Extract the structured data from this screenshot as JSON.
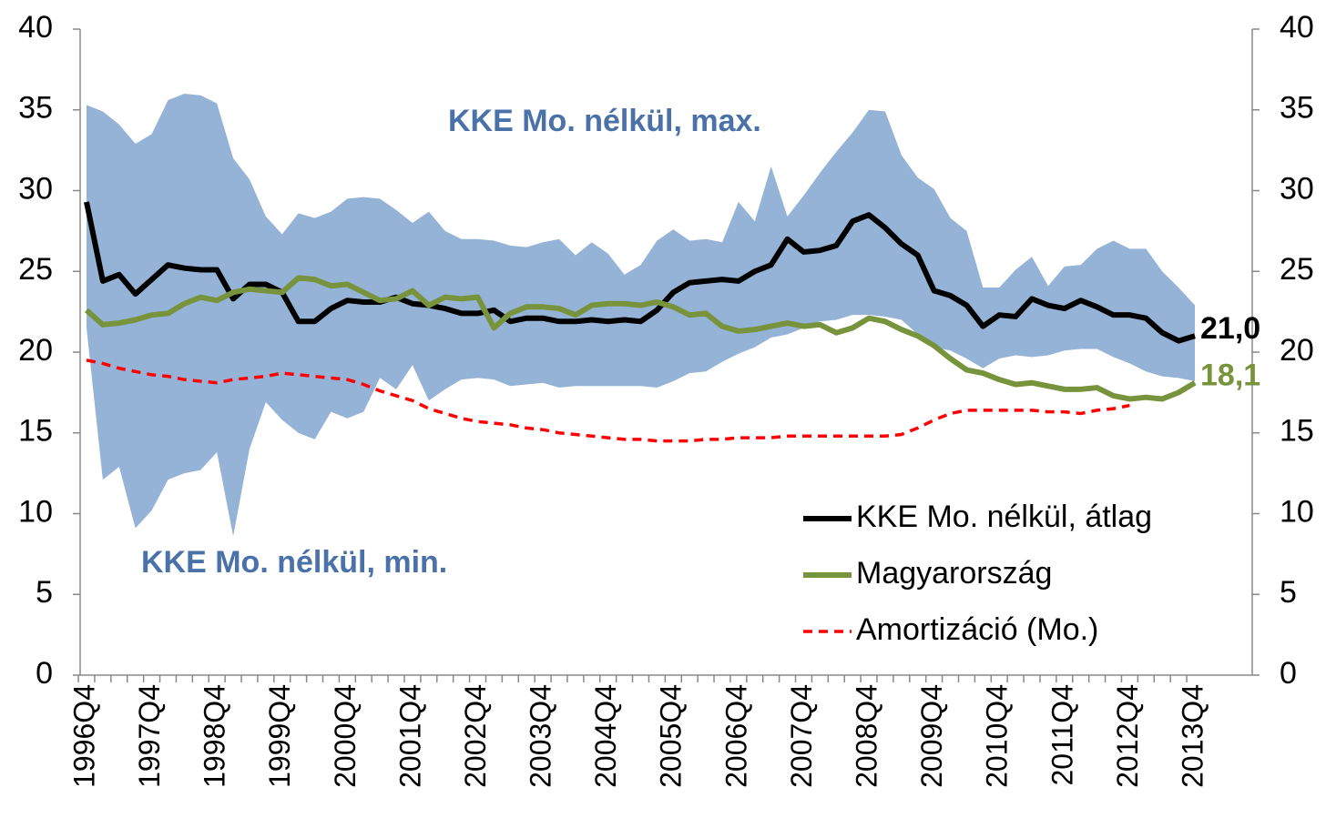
{
  "chart_data": {
    "type": "line",
    "categories": [
      "1996Q4",
      null,
      null,
      null,
      "1997Q4",
      null,
      null,
      null,
      "1998Q4",
      null,
      null,
      null,
      "1999Q4",
      null,
      null,
      null,
      "2000Q4",
      null,
      null,
      null,
      "2001Q4",
      null,
      null,
      null,
      "2002Q4",
      null,
      null,
      null,
      "2003Q4",
      null,
      null,
      null,
      "2004Q4",
      null,
      null,
      null,
      "2005Q4",
      null,
      null,
      null,
      "2006Q4",
      null,
      null,
      null,
      "2007Q4",
      null,
      null,
      null,
      "2008Q4",
      null,
      null,
      null,
      "2009Q4",
      null,
      null,
      null,
      "2010Q4",
      null,
      null,
      null,
      "2011Q4",
      null,
      null,
      null,
      "2012Q4",
      null,
      null,
      null,
      "2013Q4"
    ],
    "band": {
      "color": "#95b3d7",
      "upper": {
        "name": "KKE Mo. nélkül, max.",
        "values": [
          35.3,
          34.9,
          34.1,
          32.9,
          33.5,
          35.6,
          36.0,
          35.9,
          35.4,
          32.0,
          30.7,
          28.4,
          27.3,
          28.6,
          28.3,
          28.7,
          29.5,
          29.6,
          29.5,
          28.8,
          28.0,
          28.7,
          27.5,
          27.0,
          27.0,
          26.9,
          26.6,
          26.5,
          26.8,
          27.0,
          26.0,
          26.8,
          26.1,
          24.8,
          25.4,
          26.9,
          27.6,
          26.9,
          27.0,
          26.8,
          29.3,
          28.1,
          31.5,
          28.4,
          29.7,
          31.1,
          32.4,
          33.6,
          35.0,
          34.9,
          32.2,
          30.8,
          30.1,
          28.3,
          27.5,
          24.0,
          24.0,
          25.1,
          25.9,
          24.1,
          25.3,
          25.4,
          26.4,
          26.9,
          26.4,
          26.4,
          25.0,
          24.0,
          22.9
        ]
      },
      "lower": {
        "name": "KKE Mo. nélkül, min.",
        "values": [
          21.5,
          12.1,
          12.9,
          9.1,
          10.2,
          12.1,
          12.5,
          12.7,
          13.8,
          8.6,
          14.0,
          16.9,
          15.8,
          15.0,
          14.6,
          16.3,
          15.9,
          16.3,
          18.4,
          17.7,
          19.2,
          17.0,
          17.7,
          18.3,
          18.4,
          18.3,
          17.9,
          18.0,
          18.1,
          17.8,
          17.9,
          17.9,
          17.9,
          17.9,
          17.9,
          17.8,
          18.2,
          18.7,
          18.8,
          19.4,
          19.9,
          20.3,
          20.9,
          21.1,
          21.5,
          21.9,
          22.0,
          22.3,
          22.3,
          22.2,
          22.0,
          21.1,
          20.3,
          20.1,
          19.6,
          19.0,
          19.6,
          19.8,
          19.7,
          19.8,
          20.1,
          20.2,
          20.2,
          19.7,
          19.3,
          18.8,
          18.5,
          18.4,
          18.2
        ]
      }
    },
    "series": [
      {
        "name": "KKE Mo. nélkül, átlag",
        "color": "#000000",
        "dashed": false,
        "values": [
          29.3,
          24.4,
          24.8,
          23.6,
          24.5,
          25.4,
          25.2,
          25.1,
          25.1,
          23.3,
          24.2,
          24.2,
          23.7,
          21.9,
          21.9,
          22.7,
          23.2,
          23.1,
          23.1,
          23.4,
          23.0,
          22.9,
          22.7,
          22.4,
          22.4,
          22.6,
          21.9,
          22.1,
          22.1,
          21.9,
          21.9,
          22.0,
          21.9,
          22.0,
          21.9,
          22.6,
          23.7,
          24.3,
          24.4,
          24.5,
          24.4,
          25.0,
          25.4,
          27.0,
          26.2,
          26.3,
          26.6,
          28.1,
          28.5,
          27.7,
          26.7,
          26.0,
          23.8,
          23.5,
          22.9,
          21.6,
          22.3,
          22.2,
          23.3,
          22.9,
          22.7,
          23.2,
          22.8,
          22.3,
          22.3,
          22.1,
          21.2,
          20.7,
          21.0
        ],
        "value_labels": [
          null,
          null,
          null,
          null,
          null,
          null,
          null,
          null,
          null,
          null,
          null,
          null,
          null,
          null,
          null,
          null,
          null,
          null,
          null,
          null,
          null,
          null,
          null,
          null,
          null,
          null,
          null,
          null,
          null,
          null,
          null,
          null,
          null,
          null,
          null,
          null,
          null,
          null,
          null,
          null,
          null,
          null,
          null,
          null,
          null,
          null,
          null,
          null,
          null,
          null,
          null,
          null,
          null,
          null,
          null,
          null,
          null,
          null,
          null,
          null,
          null,
          null,
          null,
          null,
          null,
          null,
          null,
          null,
          "21,0"
        ]
      },
      {
        "name": "Magyarország",
        "color": "#77933c",
        "dashed": false,
        "values": [
          22.6,
          21.7,
          21.8,
          22.0,
          22.3,
          22.4,
          23.0,
          23.4,
          23.2,
          23.7,
          23.9,
          23.8,
          23.7,
          24.6,
          24.5,
          24.1,
          24.2,
          23.7,
          23.2,
          23.3,
          23.8,
          22.9,
          23.4,
          23.3,
          23.4,
          21.5,
          22.4,
          22.8,
          22.8,
          22.7,
          22.3,
          22.9,
          23.0,
          23.0,
          22.9,
          23.1,
          22.8,
          22.3,
          22.4,
          21.6,
          21.3,
          21.4,
          21.6,
          21.8,
          21.6,
          21.7,
          21.2,
          21.5,
          22.1,
          21.9,
          21.4,
          21.0,
          20.4,
          19.6,
          18.9,
          18.7,
          18.3,
          18.0,
          18.1,
          17.9,
          17.7,
          17.7,
          17.8,
          17.3,
          17.1,
          17.2,
          17.1,
          17.5,
          18.1
        ],
        "value_labels": [
          null,
          null,
          null,
          null,
          null,
          null,
          null,
          null,
          null,
          null,
          null,
          null,
          null,
          null,
          null,
          null,
          null,
          null,
          null,
          null,
          null,
          null,
          null,
          null,
          null,
          null,
          null,
          null,
          null,
          null,
          null,
          null,
          null,
          null,
          null,
          null,
          null,
          null,
          null,
          null,
          null,
          null,
          null,
          null,
          null,
          null,
          null,
          null,
          null,
          null,
          null,
          null,
          null,
          null,
          null,
          null,
          null,
          null,
          null,
          null,
          null,
          null,
          null,
          null,
          null,
          null,
          null,
          null,
          "18,1"
        ]
      },
      {
        "name": "Amortizáció (Mo.)",
        "color": "#ff0000",
        "dashed": true,
        "values": [
          19.5,
          19.3,
          19.0,
          18.8,
          18.6,
          18.5,
          18.3,
          18.2,
          18.1,
          18.3,
          18.4,
          18.5,
          18.7,
          18.6,
          18.5,
          18.4,
          18.3,
          18.0,
          17.6,
          17.3,
          17.0,
          16.5,
          16.2,
          15.9,
          15.7,
          15.6,
          15.5,
          15.3,
          15.2,
          15.0,
          14.9,
          14.8,
          14.7,
          14.6,
          14.6,
          14.5,
          14.5,
          14.5,
          14.6,
          14.6,
          14.7,
          14.7,
          14.7,
          14.8,
          14.8,
          14.8,
          14.8,
          14.8,
          14.8,
          14.8,
          14.9,
          15.3,
          15.8,
          16.2,
          16.4,
          16.4,
          16.4,
          16.4,
          16.4,
          16.3,
          16.3,
          16.2,
          16.4,
          16.5,
          16.7,
          null,
          null,
          null,
          null
        ]
      }
    ],
    "ylim": [
      0,
      40
    ],
    "yticks": [
      0,
      5,
      10,
      15,
      20,
      25,
      30,
      35,
      40
    ],
    "y2lim": [
      0,
      40
    ],
    "y2ticks": [
      0,
      5,
      10,
      15,
      20,
      25,
      30,
      35,
      40
    ],
    "grid": false
  }
}
